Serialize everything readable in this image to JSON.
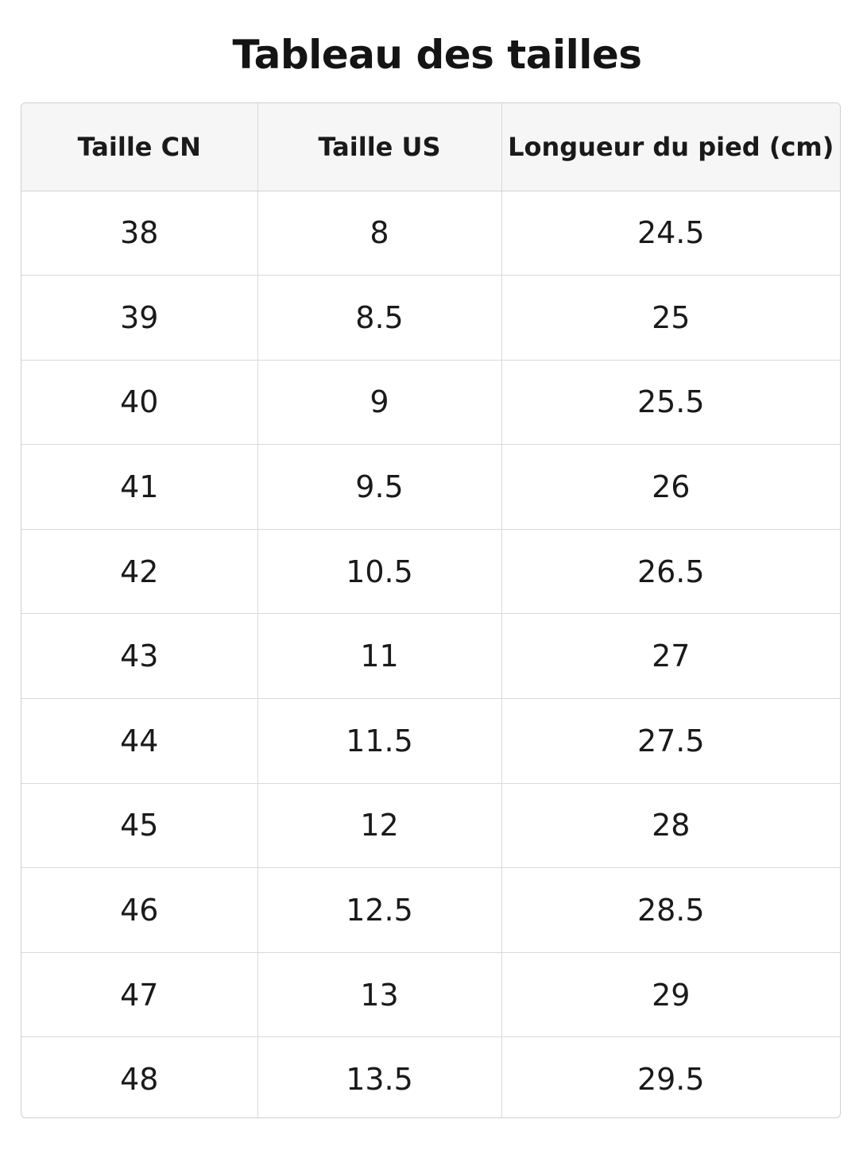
{
  "title": "Tableau des tailles",
  "table": {
    "headers": [
      "Taille CN",
      "Taille US",
      "Longueur du pied (cm)"
    ],
    "rows": [
      [
        "38",
        "8",
        "24.5"
      ],
      [
        "39",
        "8.5",
        "25"
      ],
      [
        "40",
        "9",
        "25.5"
      ],
      [
        "41",
        "9.5",
        "26"
      ],
      [
        "42",
        "10.5",
        "26.5"
      ],
      [
        "43",
        "11",
        "27"
      ],
      [
        "44",
        "11.5",
        "27.5"
      ],
      [
        "45",
        "12",
        "28"
      ],
      [
        "46",
        "12.5",
        "28.5"
      ],
      [
        "47",
        "13",
        "29"
      ],
      [
        "48",
        "13.5",
        "29.5"
      ]
    ]
  },
  "colors": {
    "header_background": "#f6f6f6",
    "border": "#d9d9d9",
    "text": "#1a1a1a"
  }
}
